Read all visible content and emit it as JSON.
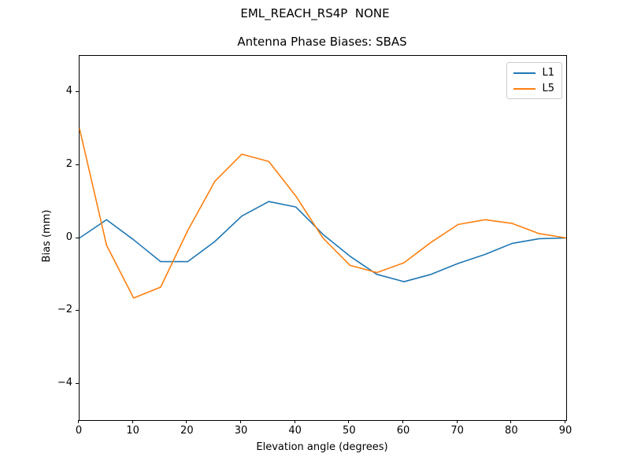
{
  "chart_data": {
    "type": "line",
    "suptitle": "EML_REACH_RS4P  NONE",
    "title": "Antenna Phase Biases: SBAS",
    "xlabel": "Elevation angle (degrees)",
    "ylabel": "Bias (mm)",
    "xlim": [
      0,
      90
    ],
    "ylim": [
      -5,
      5
    ],
    "grid": false,
    "legend_position": "upper right",
    "background_color": "#ffffff",
    "x": [
      0,
      5,
      10,
      15,
      20,
      25,
      30,
      35,
      40,
      45,
      50,
      55,
      60,
      65,
      70,
      75,
      80,
      85,
      90
    ],
    "series": [
      {
        "name": "L1",
        "color": "#1f77b4",
        "values": [
          0.0,
          0.5,
          -0.05,
          -0.65,
          -0.65,
          -0.1,
          0.6,
          1.0,
          0.85,
          0.1,
          -0.5,
          -1.0,
          -1.2,
          -1.0,
          -0.7,
          -0.45,
          -0.15,
          -0.02,
          0.0
        ]
      },
      {
        "name": "L5",
        "color": "#ff7f0e",
        "values": [
          3.0,
          -0.2,
          -1.65,
          -1.35,
          0.2,
          1.55,
          2.3,
          2.1,
          1.15,
          0.0,
          -0.75,
          -0.95,
          -0.68,
          -0.12,
          0.37,
          0.5,
          0.4,
          0.12,
          0.0
        ]
      }
    ],
    "xticks": {
      "values": [
        0,
        10,
        20,
        30,
        40,
        50,
        60,
        70,
        80,
        90
      ],
      "labels": [
        "0",
        "10",
        "20",
        "30",
        "40",
        "50",
        "60",
        "70",
        "80",
        "90"
      ]
    },
    "yticks": {
      "values": [
        -4,
        -2,
        0,
        2,
        4
      ],
      "labels": [
        "−4",
        "−2",
        "0",
        "2",
        "4"
      ]
    }
  }
}
